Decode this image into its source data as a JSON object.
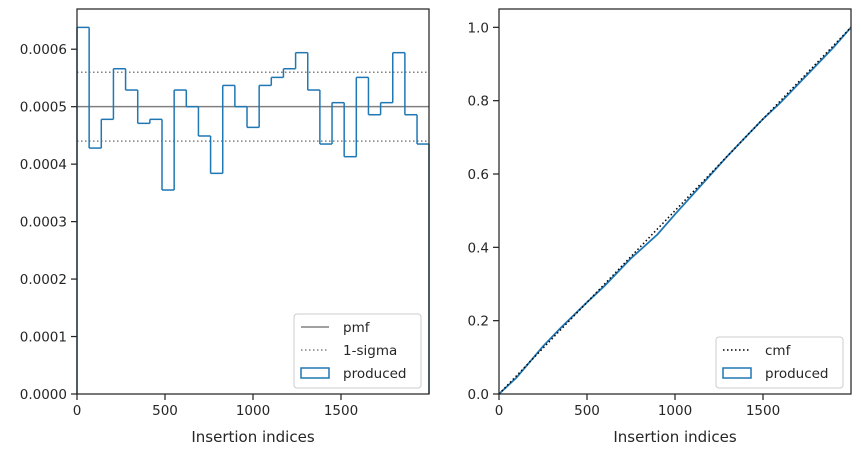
{
  "chart_data": [
    {
      "type": "histogram-step",
      "title": "",
      "xlabel": "Insertion indices",
      "ylabel": "",
      "xlim": [
        0,
        2000
      ],
      "ylim": [
        0,
        0.00067
      ],
      "xticks": [
        0,
        500,
        1000,
        1500
      ],
      "xtick_labels": [
        "0",
        "500",
        "1000",
        "1500"
      ],
      "yticks": [
        0,
        0.0001,
        0.0002,
        0.0003,
        0.0004,
        0.0005,
        0.0006
      ],
      "ytick_labels": [
        "0.0000",
        "0.0001",
        "0.0002",
        "0.0003",
        "0.0004",
        "0.0005",
        "0.0006"
      ],
      "bin_edges": [
        0,
        69,
        138,
        207,
        276,
        345,
        414,
        483,
        552,
        621,
        690,
        759,
        828,
        897,
        966,
        1035,
        1104,
        1173,
        1242,
        1311,
        1380,
        1449,
        1518,
        1587,
        1656,
        1725,
        1794,
        1863,
        1932,
        2000
      ],
      "series": [
        {
          "name": "produced",
          "role": "step",
          "color": "#1f77b4",
          "values": [
            0.000638,
            0.000428,
            0.000478,
            0.000566,
            0.000529,
            0.000471,
            0.000478,
            0.000355,
            0.000529,
            0.0005,
            0.000449,
            0.000384,
            0.000537,
            0.0005,
            0.000464,
            0.000537,
            0.000551,
            0.000566,
            0.000594,
            0.000529,
            0.000435,
            0.000507,
            0.000413,
            0.000551,
            0.000486,
            0.000507,
            0.000594,
            0.000486,
            0.000435
          ]
        },
        {
          "name": "pmf",
          "role": "hline",
          "color": "#808080",
          "value": 0.0005
        },
        {
          "name": "1-sigma",
          "role": "hline-dotted",
          "color": "#808080",
          "values": [
            0.00044,
            0.00056
          ]
        }
      ],
      "legend": {
        "placement": "lower right",
        "entries": [
          "pmf",
          "1-sigma",
          "produced"
        ]
      },
      "grid": false
    },
    {
      "type": "line",
      "title": "",
      "xlabel": "Insertion indices",
      "ylabel": "",
      "xlim": [
        0,
        2000
      ],
      "ylim": [
        0,
        1.05
      ],
      "xticks": [
        0,
        500,
        1000,
        1500
      ],
      "xtick_labels": [
        "0",
        "500",
        "1000",
        "1500"
      ],
      "yticks": [
        0,
        0.2,
        0.4,
        0.6,
        0.8,
        1.0
      ],
      "ytick_labels": [
        "0.0",
        "0.2",
        "0.4",
        "0.6",
        "0.8",
        "1.0"
      ],
      "series": [
        {
          "name": "cmf",
          "style": "dotted",
          "color": "#000000",
          "x": [
            0,
            2000
          ],
          "y": [
            0,
            1.0
          ]
        },
        {
          "name": "produced",
          "style": "solid",
          "color": "#1f77b4",
          "x": [
            0,
            100,
            250,
            350,
            500,
            600,
            750,
            900,
            1000,
            1150,
            1300,
            1400,
            1500,
            1600,
            1750,
            1900,
            2000
          ],
          "y": [
            0,
            0.045,
            0.13,
            0.18,
            0.25,
            0.295,
            0.37,
            0.435,
            0.49,
            0.57,
            0.65,
            0.7,
            0.75,
            0.795,
            0.87,
            0.945,
            1.0
          ]
        }
      ],
      "legend": {
        "placement": "lower right",
        "entries": [
          "cmf",
          "produced"
        ]
      },
      "grid": false
    }
  ]
}
